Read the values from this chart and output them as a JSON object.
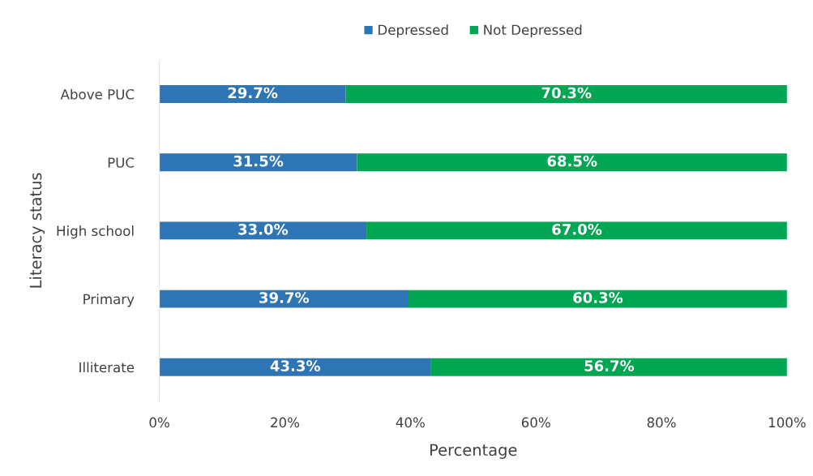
{
  "chart_data": {
    "type": "bar",
    "orientation": "horizontal",
    "stacked": true,
    "categories": [
      "Above PUC",
      "PUC",
      "High school",
      "Primary",
      "Illiterate"
    ],
    "series": [
      {
        "name": "Depressed",
        "color": "#2e75b6",
        "values": [
          29.7,
          31.5,
          33.0,
          39.7,
          43.3
        ],
        "value_labels": [
          "29.7%",
          "31.5%",
          "33.0%",
          "39.7%",
          "43.3%"
        ]
      },
      {
        "name": "Not Depressed",
        "color": "#00a651",
        "values": [
          70.3,
          68.5,
          67.0,
          60.3,
          56.7
        ],
        "value_labels": [
          "70.3%",
          "68.5%",
          "67.0%",
          "60.3%",
          "56.7%"
        ]
      }
    ],
    "xlabel": "Percentage",
    "ylabel": "Literacy status",
    "xlim": [
      0,
      100
    ],
    "xticks": [
      {
        "value": 0,
        "label": "0%"
      },
      {
        "value": 20,
        "label": "20%"
      },
      {
        "value": 40,
        "label": "40%"
      },
      {
        "value": 60,
        "label": "60%"
      },
      {
        "value": 80,
        "label": "80%"
      },
      {
        "value": 100,
        "label": "100%"
      }
    ],
    "grid": false,
    "legend": "top"
  }
}
